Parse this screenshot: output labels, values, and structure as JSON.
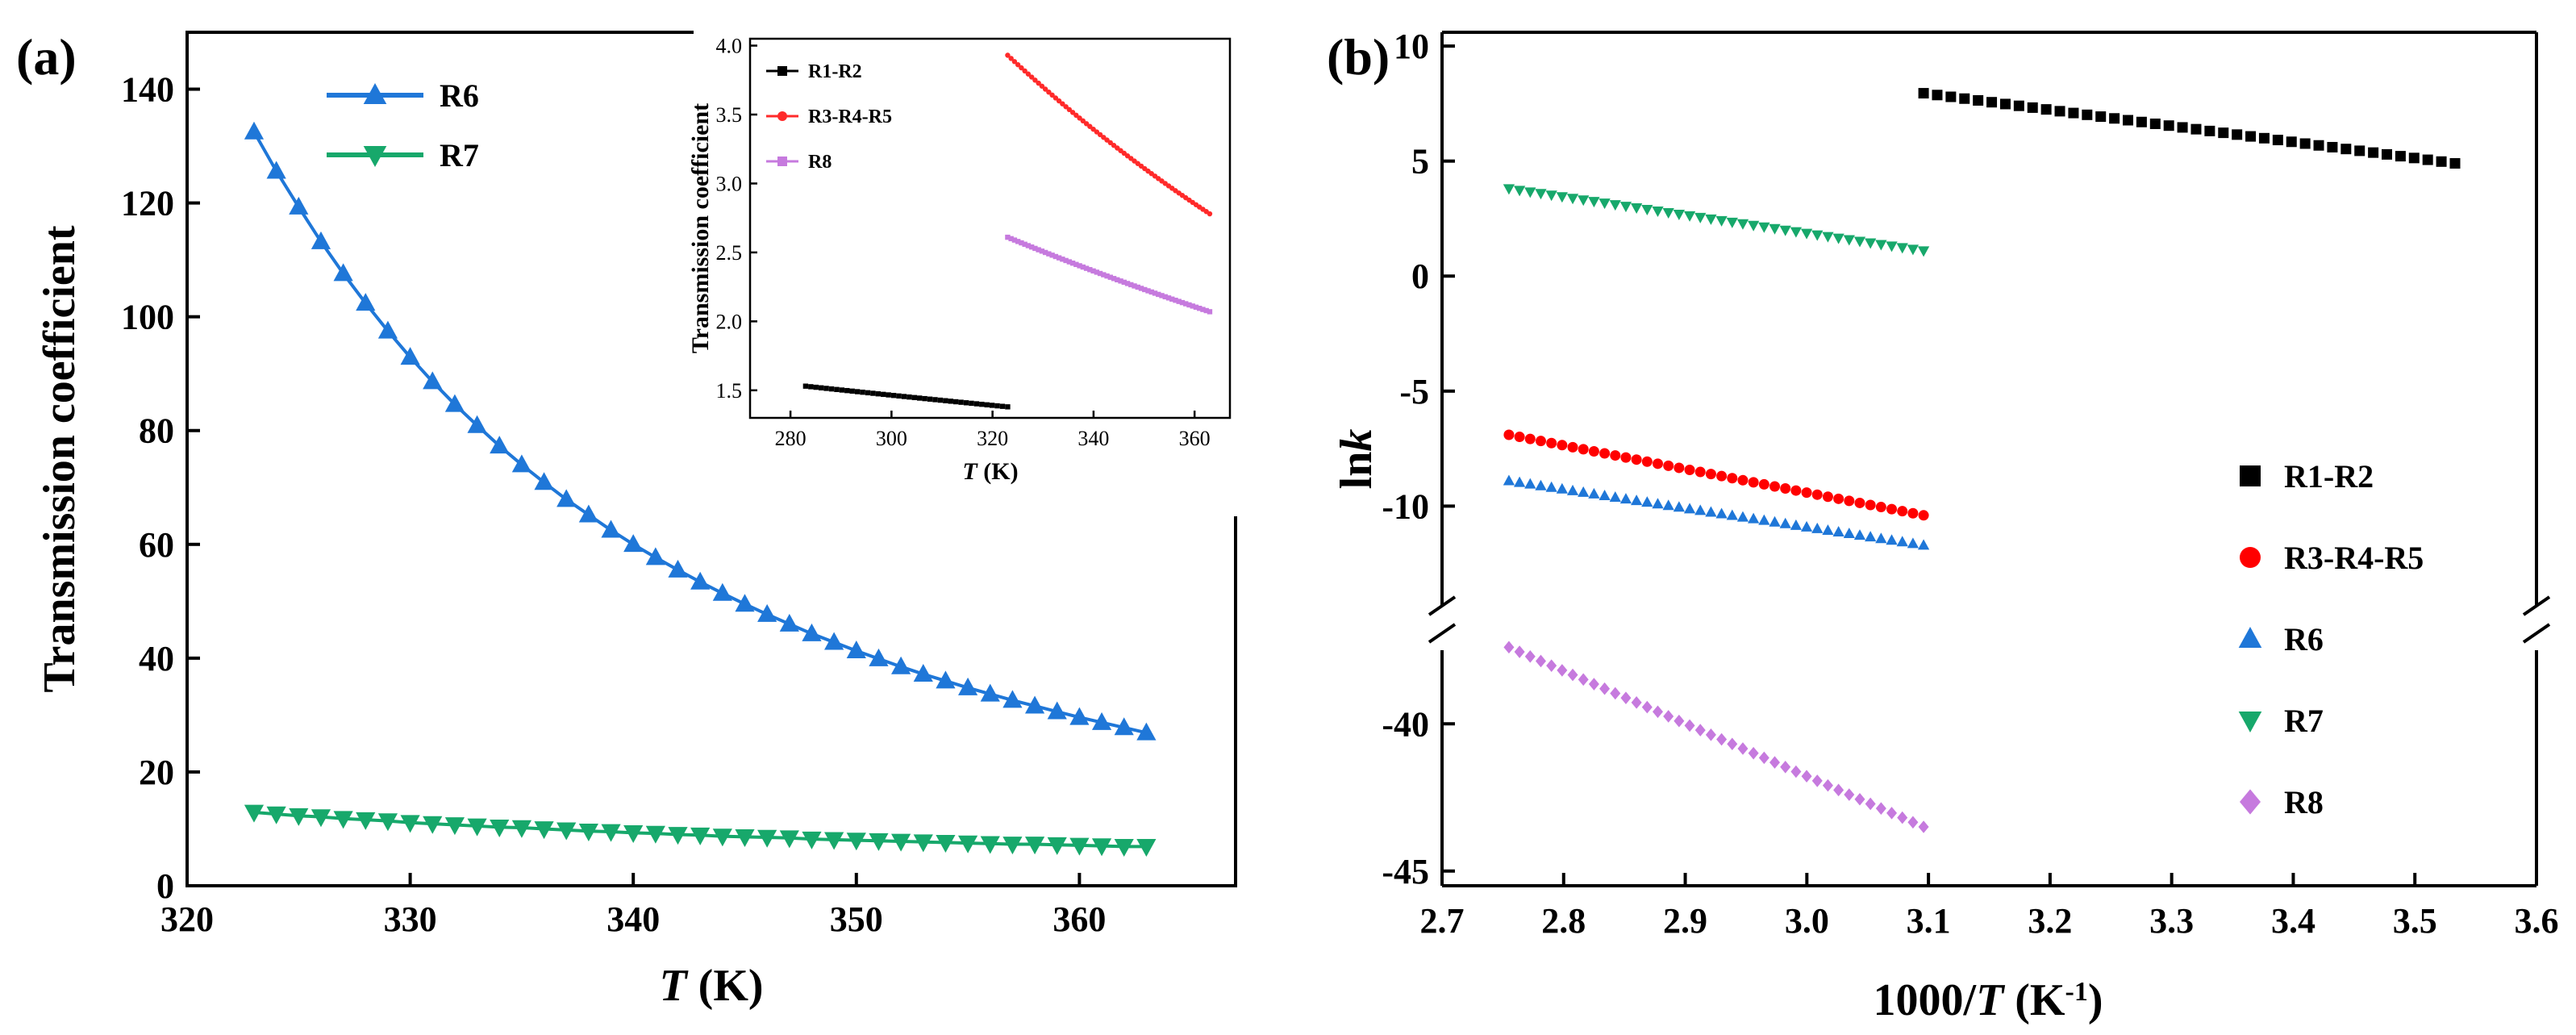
{
  "chart_data": [
    {
      "id": "panel-a",
      "panel_label": "(a)",
      "type": "line",
      "xlabel_var": "T",
      "xlabel_unit": " (K)",
      "ylabel": "Transmission coefficient",
      "xlim": [
        320,
        367
      ],
      "ylim": [
        0,
        150
      ],
      "xticks": [
        320,
        330,
        340,
        350,
        360
      ],
      "yticks": [
        0,
        20,
        40,
        60,
        80,
        100,
        120,
        140
      ],
      "legend_position": "top-left",
      "series": [
        {
          "name": "R6",
          "color": "#1F77D8",
          "marker": "triangle-up",
          "x": [
            323,
            324,
            325,
            326,
            327,
            328,
            329,
            330,
            331,
            332,
            333,
            334,
            335,
            336,
            337,
            338,
            339,
            340,
            341,
            342,
            343,
            344,
            345,
            346,
            347,
            348,
            349,
            350,
            351,
            352,
            353,
            354,
            355,
            356,
            357,
            358,
            359,
            360,
            361,
            362,
            363
          ],
          "y": [
            132.5,
            125.6,
            119.3,
            113.2,
            107.6,
            102.4,
            97.5,
            92.9,
            88.6,
            84.6,
            80.9,
            77.3,
            74.0,
            70.9,
            67.9,
            65.2,
            62.5,
            60.0,
            57.7,
            55.5,
            53.4,
            51.4,
            49.5,
            47.7,
            46.0,
            44.3,
            42.8,
            41.3,
            39.9,
            38.5,
            37.2,
            36.0,
            34.8,
            33.7,
            32.6,
            31.6,
            30.6,
            29.6,
            28.7,
            27.8,
            26.9
          ]
        },
        {
          "name": "R7",
          "color": "#17A86B",
          "marker": "triangle-down",
          "x": [
            323,
            324,
            325,
            326,
            327,
            328,
            329,
            330,
            331,
            332,
            333,
            334,
            335,
            336,
            337,
            338,
            339,
            340,
            341,
            342,
            343,
            344,
            345,
            346,
            347,
            348,
            349,
            350,
            351,
            352,
            353,
            354,
            355,
            356,
            357,
            358,
            359,
            360,
            361,
            362,
            363
          ],
          "y": [
            12.9,
            12.6,
            12.3,
            12.1,
            11.8,
            11.6,
            11.4,
            11.1,
            10.9,
            10.7,
            10.5,
            10.3,
            10.2,
            10.0,
            9.8,
            9.6,
            9.5,
            9.3,
            9.2,
            9.0,
            8.9,
            8.7,
            8.6,
            8.5,
            8.4,
            8.2,
            8.1,
            8.0,
            7.9,
            7.8,
            7.7,
            7.6,
            7.5,
            7.4,
            7.3,
            7.3,
            7.2,
            7.1,
            7.0,
            6.9,
            6.9
          ]
        }
      ],
      "inset": {
        "type": "line",
        "xlabel_var": "T",
        "xlabel_unit": " (K)",
        "ylabel": "Transmission coefficient",
        "xlim": [
          272,
          367
        ],
        "ylim": [
          1.3,
          4.05
        ],
        "xticks": [
          280,
          300,
          320,
          340,
          360
        ],
        "yticks": [
          1.5,
          2.0,
          2.5,
          3.0,
          3.5,
          4.0
        ],
        "legend_position": "top-left",
        "series": [
          {
            "name": "R1-R2",
            "color": "#000000",
            "marker": "square",
            "x_range": [
              283,
              323
            ],
            "y_start": 1.53,
            "y_end": 1.38,
            "points": 40
          },
          {
            "name": "R3-R4-R5",
            "color": "#FF2A2A",
            "marker": "circle",
            "x_range": [
              323,
              363
            ],
            "y_start": 3.93,
            "y_end": 2.78,
            "points": 60
          },
          {
            "name": "R8",
            "color": "#C67ADE",
            "marker": "square",
            "x_range": [
              323,
              363
            ],
            "y_start": 2.61,
            "y_end": 2.07,
            "points": 60
          }
        ]
      }
    },
    {
      "id": "panel-b",
      "panel_label": "(b)",
      "type": "scatter",
      "xlabel_pre": "1000/",
      "xlabel_var": "T",
      "xlabel_unit": " (K",
      "xlabel_sup": "-1",
      "xlabel_end": ")",
      "ylabel_pre": "ln",
      "ylabel_var": "k",
      "xlim": [
        2.7,
        3.6
      ],
      "xticks": [
        "2.7",
        "2.8",
        "2.9",
        "3.0",
        "3.1",
        "3.2",
        "3.3",
        "3.4",
        "3.5",
        "3.6"
      ],
      "ylim_upper": [
        -14.3,
        10.6
      ],
      "ylim_lower": [
        -45.5,
        -37.5
      ],
      "yticks_upper": [
        10,
        5,
        0,
        -5,
        -10
      ],
      "yticks_lower": [
        -40,
        -45
      ],
      "axis_break": "between -14.3 and -37.5",
      "legend_position": "right",
      "series": [
        {
          "name": "R1-R2",
          "color": "#000000",
          "marker": "square",
          "x_range": [
            3.096,
            3.533
          ],
          "y_start": 7.95,
          "y_end": 4.9,
          "points": 40
        },
        {
          "name": "R3-R4-R5",
          "color": "#FF0000",
          "marker": "circle",
          "x_range": [
            2.755,
            3.096
          ],
          "y_start": -6.9,
          "y_end": -10.4,
          "points": 40
        },
        {
          "name": "R6",
          "color": "#1F77D8",
          "marker": "triangle-up",
          "x_range": [
            2.755,
            3.096
          ],
          "y_start": -8.9,
          "y_end": -11.7,
          "points": 40
        },
        {
          "name": "R7",
          "color": "#17A86B",
          "marker": "triangle-down",
          "x_range": [
            2.755,
            3.096
          ],
          "y_start": 3.8,
          "y_end": 1.1,
          "points": 40
        },
        {
          "name": "R8",
          "color": "#C67ADE",
          "marker": "diamond",
          "x_range": [
            2.755,
            3.096
          ],
          "y_start": -37.4,
          "y_end": -43.5,
          "points": 40
        }
      ]
    }
  ]
}
